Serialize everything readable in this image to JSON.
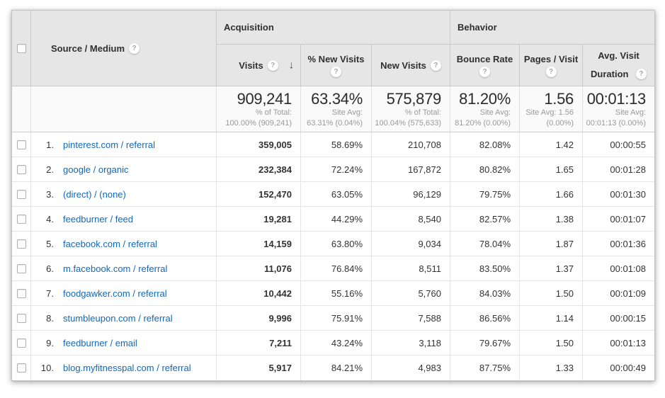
{
  "header": {
    "source_medium": "Source / Medium",
    "groups": {
      "acquisition": "Acquisition",
      "behavior": "Behavior"
    },
    "cols": {
      "visits": "Visits",
      "pct_new_visits": "% New Visits",
      "new_visits": "New Visits",
      "bounce_rate": "Bounce Rate",
      "pages_visit": "Pages / Visit",
      "avg_visit_duration": "Avg. Visit Duration"
    },
    "help_glyph": "?",
    "sort_arrow": "↓"
  },
  "summary": {
    "visits": {
      "value": "909,241",
      "sub1": "% of Total:",
      "sub2": "100.00% (909,241)"
    },
    "pct_new_visits": {
      "value": "63.34%",
      "sub1": "Site Avg:",
      "sub2": "63.31% (0.04%)"
    },
    "new_visits": {
      "value": "575,879",
      "sub1": "% of Total:",
      "sub2": "100.04% (575,633)"
    },
    "bounce_rate": {
      "value": "81.20%",
      "sub1": "Site Avg:",
      "sub2": "81.20% (0.00%)"
    },
    "pages_visit": {
      "value": "1.56",
      "sub1": "Site Avg: 1.56",
      "sub2": "(0.00%)"
    },
    "avg_visit_duration": {
      "value": "00:01:13",
      "sub1": "Site Avg:",
      "sub2": "00:01:13 (0.00%)"
    }
  },
  "rows": [
    {
      "rank": "1.",
      "source": "pinterest.com / referral",
      "visits": "359,005",
      "pct_new": "58.69%",
      "new_visits": "210,708",
      "bounce": "82.08%",
      "pages": "1.42",
      "duration": "00:00:55"
    },
    {
      "rank": "2.",
      "source": "google / organic",
      "visits": "232,384",
      "pct_new": "72.24%",
      "new_visits": "167,872",
      "bounce": "80.82%",
      "pages": "1.65",
      "duration": "00:01:28"
    },
    {
      "rank": "3.",
      "source": "(direct) / (none)",
      "visits": "152,470",
      "pct_new": "63.05%",
      "new_visits": "96,129",
      "bounce": "79.75%",
      "pages": "1.66",
      "duration": "00:01:30"
    },
    {
      "rank": "4.",
      "source": "feedburner / feed",
      "visits": "19,281",
      "pct_new": "44.29%",
      "new_visits": "8,540",
      "bounce": "82.57%",
      "pages": "1.38",
      "duration": "00:01:07"
    },
    {
      "rank": "5.",
      "source": "facebook.com / referral",
      "visits": "14,159",
      "pct_new": "63.80%",
      "new_visits": "9,034",
      "bounce": "78.04%",
      "pages": "1.87",
      "duration": "00:01:36"
    },
    {
      "rank": "6.",
      "source": "m.facebook.com / referral",
      "visits": "11,076",
      "pct_new": "76.84%",
      "new_visits": "8,511",
      "bounce": "83.50%",
      "pages": "1.37",
      "duration": "00:01:08"
    },
    {
      "rank": "7.",
      "source": "foodgawker.com / referral",
      "visits": "10,442",
      "pct_new": "55.16%",
      "new_visits": "5,760",
      "bounce": "84.03%",
      "pages": "1.50",
      "duration": "00:01:09"
    },
    {
      "rank": "8.",
      "source": "stumbleupon.com / referral",
      "visits": "9,996",
      "pct_new": "75.91%",
      "new_visits": "7,588",
      "bounce": "86.56%",
      "pages": "1.14",
      "duration": "00:00:15"
    },
    {
      "rank": "9.",
      "source": "feedburner / email",
      "visits": "7,211",
      "pct_new": "43.24%",
      "new_visits": "3,118",
      "bounce": "79.67%",
      "pages": "1.50",
      "duration": "00:01:13"
    },
    {
      "rank": "10.",
      "source": "blog.myfitnesspal.com / referral",
      "visits": "5,917",
      "pct_new": "84.21%",
      "new_visits": "4,983",
      "bounce": "87.75%",
      "pages": "1.33",
      "duration": "00:00:49"
    }
  ]
}
